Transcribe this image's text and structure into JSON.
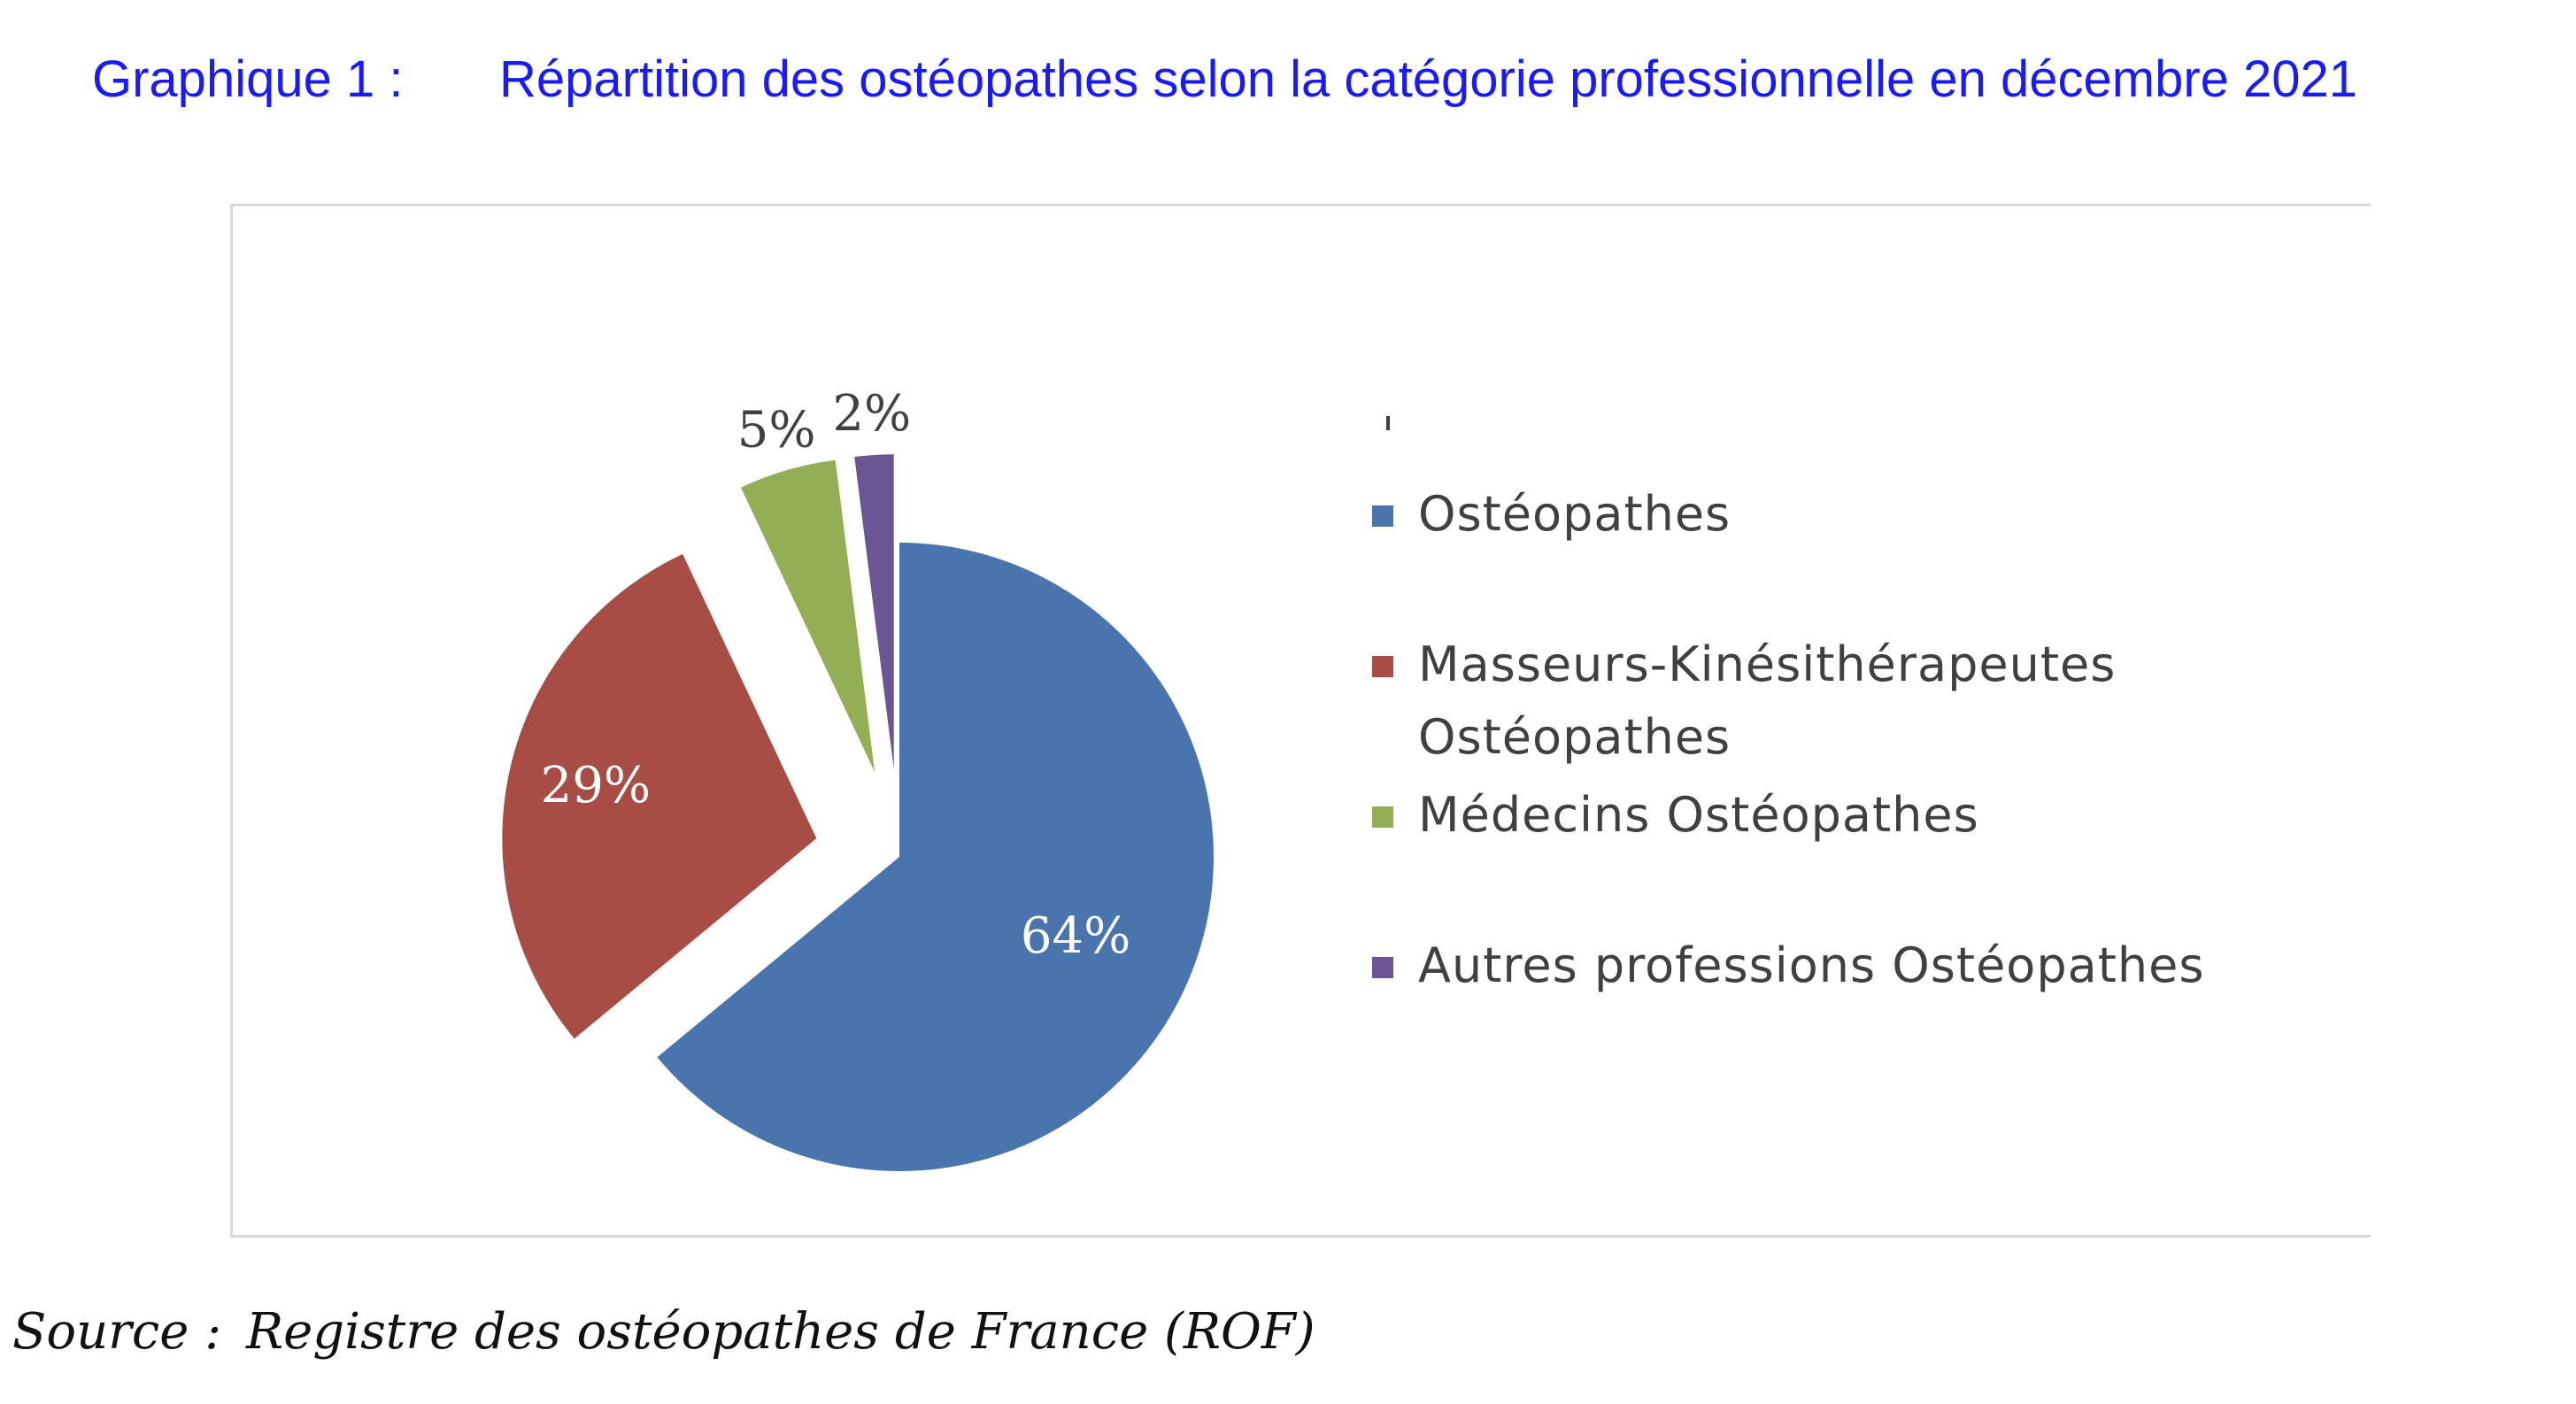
{
  "header": {
    "number": "Graphique 1 :",
    "title": "Répartition des ostéopathes selon la catégorie professionnelle en décembre 2021"
  },
  "source": {
    "label": "Source :",
    "text": "Registre des ostéopathes de France (ROF)"
  },
  "chart_data": {
    "type": "pie",
    "title": "Répartition des ostéopathes selon la catégorie professionnelle en décembre 2021",
    "legend_position": "right",
    "exploded": true,
    "slices": [
      {
        "label": "Ostéopathes",
        "value": 64,
        "data_label": "64%",
        "color": "#4a74ae"
      },
      {
        "label": "Masseurs-Kinésithérapeutes\nOstéopathes",
        "value": 29,
        "data_label": "29%",
        "color": "#a84c46"
      },
      {
        "label": "Médecins Ostéopathes",
        "value": 5,
        "data_label": "5%",
        "color": "#93ae55"
      },
      {
        "label": "Autres professions Ostéopathes",
        "value": 2,
        "data_label": "2%",
        "color": "#6b5592"
      }
    ]
  }
}
